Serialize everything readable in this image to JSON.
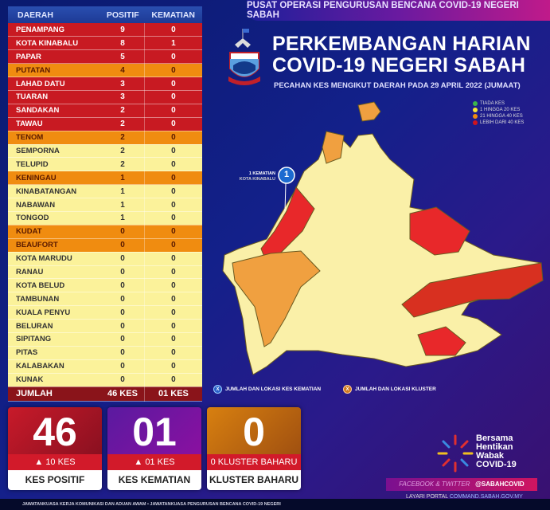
{
  "header": {
    "top_banner": "PUSAT OPERASI PENGURUSAN BENCANA COVID-19 NEGERI SABAH",
    "title_line1": "PERKEMBANGAN HARIAN",
    "title_line2": "COVID-19 NEGERI SABAH",
    "subtitle": "PECAHAN KES MENGIKUT DAERAH PADA 29 APRIL 2022 (JUMAAT)"
  },
  "legend": [
    {
      "label": "TIADA KES",
      "color": "#3bb54a"
    },
    {
      "label": "1 HINGGA 20 KES",
      "color": "#f5e63a"
    },
    {
      "label": "21 HINGGA 40 KES",
      "color": "#f08c10"
    },
    {
      "label": "LEBIH DARI 40 KES",
      "color": "#d0141e"
    }
  ],
  "colors": {
    "red": "#c81a22",
    "orange": "#f08c10",
    "yellow": "#fbf29a"
  },
  "table": {
    "headers": [
      "DAERAH",
      "POSITIF",
      "KEMATIAN"
    ],
    "rows": [
      [
        "PENAMPANG",
        "9",
        "0",
        "red"
      ],
      [
        "KOTA KINABALU",
        "8",
        "1",
        "red"
      ],
      [
        "PAPAR",
        "5",
        "0",
        "red"
      ],
      [
        "PUTATAN",
        "4",
        "0",
        "orange"
      ],
      [
        "LAHAD DATU",
        "3",
        "0",
        "red"
      ],
      [
        "TUARAN",
        "3",
        "0",
        "red"
      ],
      [
        "SANDAKAN",
        "2",
        "0",
        "red"
      ],
      [
        "TAWAU",
        "2",
        "0",
        "red"
      ],
      [
        "TENOM",
        "2",
        "0",
        "orange"
      ],
      [
        "SEMPORNA",
        "2",
        "0",
        "yellow"
      ],
      [
        "TELUPID",
        "2",
        "0",
        "yellow"
      ],
      [
        "KENINGAU",
        "1",
        "0",
        "orange"
      ],
      [
        "KINABATANGAN",
        "1",
        "0",
        "yellow"
      ],
      [
        "NABAWAN",
        "1",
        "0",
        "yellow"
      ],
      [
        "TONGOD",
        "1",
        "0",
        "yellow"
      ],
      [
        "KUDAT",
        "0",
        "0",
        "orange"
      ],
      [
        "BEAUFORT",
        "0",
        "0",
        "orange"
      ],
      [
        "KOTA MARUDU",
        "0",
        "0",
        "yellow"
      ],
      [
        "RANAU",
        "0",
        "0",
        "yellow"
      ],
      [
        "KOTA BELUD",
        "0",
        "0",
        "yellow"
      ],
      [
        "TAMBUNAN",
        "0",
        "0",
        "yellow"
      ],
      [
        "KUALA PENYU",
        "0",
        "0",
        "yellow"
      ],
      [
        "BELURAN",
        "0",
        "0",
        "yellow"
      ],
      [
        "SIPITANG",
        "0",
        "0",
        "yellow"
      ],
      [
        "PITAS",
        "0",
        "0",
        "yellow"
      ],
      [
        "KALABAKAN",
        "0",
        "0",
        "yellow"
      ],
      [
        "KUNAK",
        "0",
        "0",
        "yellow"
      ]
    ],
    "total": [
      "JUMLAH",
      "46 KES",
      "01 KES"
    ]
  },
  "map": {
    "death_marker": "1",
    "death_label": "1 KEMATIAN",
    "death_location": "KOTA KINABALU",
    "legend_death": "JUMLAH DAN LOKASI KES KEMATIAN",
    "legend_death_icon": "X",
    "legend_cluster": "JUMLAH DAN LOKASI KLUSTER",
    "legend_cluster_icon": "X"
  },
  "cards": [
    {
      "value": "46",
      "change": "▲  10 KES",
      "label": "KES POSITIF"
    },
    {
      "value": "01",
      "change": "▲  01 KES",
      "label": "KES KEMATIAN"
    },
    {
      "value": "0",
      "change": "0 KLUSTER BAHARU",
      "label": "KLUSTER BAHARU"
    }
  ],
  "campaign": [
    "Bersama",
    "Hentikan",
    "Wabak",
    "COVID-19"
  ],
  "social": {
    "label": "FACEBOOK & TWITTER",
    "handle": "@SABAHCOVID"
  },
  "portal": {
    "prefix": "LAYARI PORTAL",
    "url": "COMMAND.SABAH.GOV.MY"
  },
  "footer": "JAWATANKUASA KERJA KOMUNIKASI DAN ADUAN AWAM • JAWATANKUASA PENGURUSAN BENCANA COVID-19 NEGERI"
}
